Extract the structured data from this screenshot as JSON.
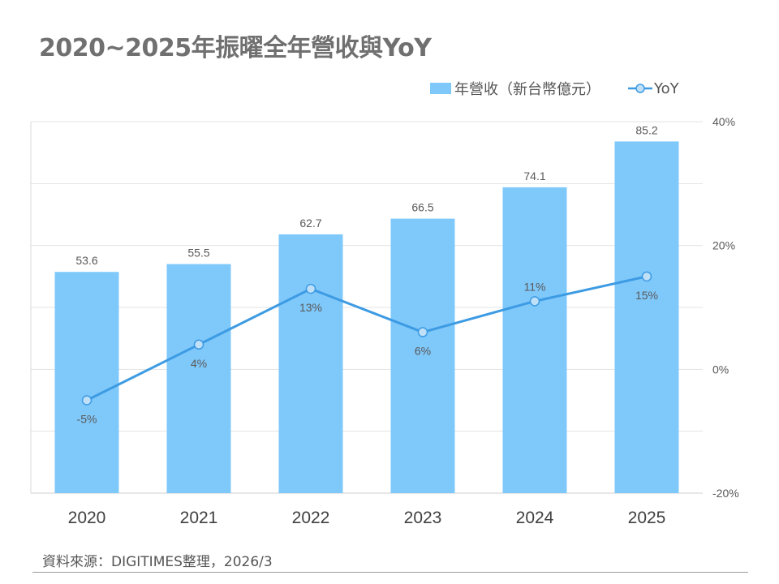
{
  "title": "2020~2025年振曜全年營收與YoY",
  "source": "資料來源：DIGITIMES整理，2026/3",
  "chart_data": {
    "type": "bar+line",
    "categories": [
      "2020",
      "2021",
      "2022",
      "2023",
      "2024",
      "2025"
    ],
    "series": [
      {
        "name": "年營收（新台幣億元）",
        "type": "bar",
        "axis": "left",
        "values": [
          53.6,
          55.5,
          62.7,
          66.5,
          74.1,
          85.2
        ],
        "labels": [
          "53.6",
          "55.5",
          "62.7",
          "66.5",
          "74.1",
          "85.2"
        ],
        "color": "#7fc8fa"
      },
      {
        "name": "YoY",
        "type": "line",
        "axis": "right",
        "values": [
          -5,
          4,
          13,
          6,
          11,
          15
        ],
        "labels": [
          "-5%",
          "4%",
          "13%",
          "6%",
          "11%",
          "15%"
        ],
        "color": "#3d9be3"
      }
    ],
    "y_left_range": [
      0,
      90
    ],
    "y_right_range": [
      -20,
      40
    ],
    "y_right_ticks": [
      {
        "value": -20,
        "label": "-20%"
      },
      {
        "value": 0,
        "label": "0%"
      },
      {
        "value": 20,
        "label": "20%"
      },
      {
        "value": 40,
        "label": "40%"
      }
    ],
    "grid": true,
    "legend_position": "top-right"
  }
}
